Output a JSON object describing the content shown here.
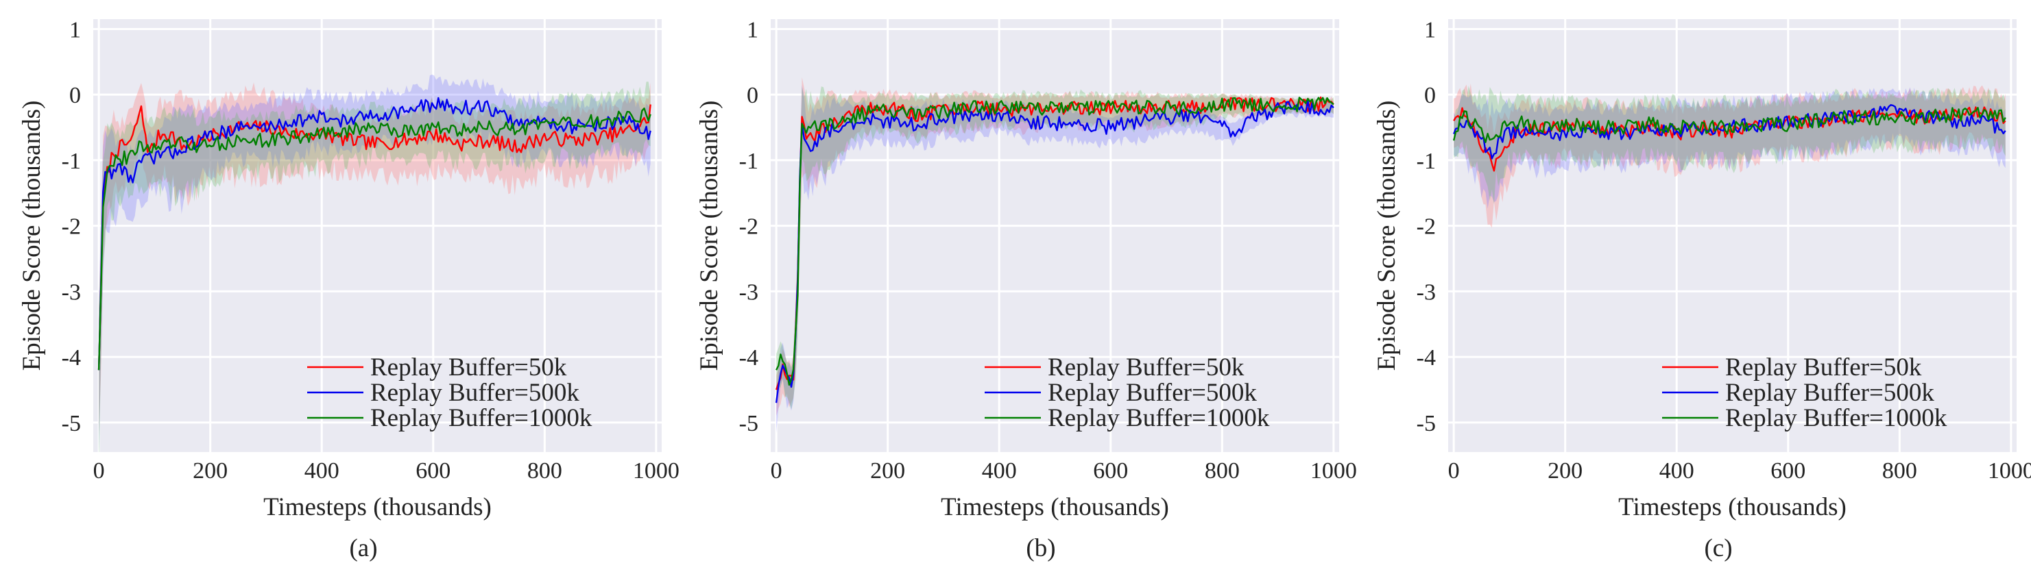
{
  "chart_data": [
    {
      "type": "line",
      "panel_label": "(a)",
      "xlabel": "Timesteps (thousands)",
      "ylabel": "Episode Score (thousands)",
      "xlim": [
        -10,
        1010
      ],
      "ylim": [
        -5.45,
        1.15
      ],
      "xticks": [
        0,
        200,
        400,
        600,
        800,
        1000
      ],
      "yticks": [
        1,
        0,
        -1,
        -2,
        -3,
        -4,
        -5
      ],
      "grid": true,
      "legend_position": "lower-right",
      "series": [
        {
          "name": "Replay Buffer=50k",
          "color": "#ff0000",
          "shade_color": "#ff6b6b",
          "x": [
            0,
            8,
            15,
            25,
            40,
            60,
            75,
            90,
            110,
            130,
            150,
            180,
            210,
            250,
            300,
            350,
            400,
            450,
            500,
            550,
            600,
            650,
            700,
            750,
            800,
            850,
            900,
            950,
            985,
            990
          ],
          "y": [
            -4.2,
            -1.5,
            -1.2,
            -0.9,
            -0.8,
            -0.7,
            -0.2,
            -0.9,
            -0.6,
            -0.6,
            -0.8,
            -0.7,
            -0.6,
            -0.5,
            -0.5,
            -0.6,
            -0.6,
            -0.7,
            -0.75,
            -0.7,
            -0.6,
            -0.75,
            -0.7,
            -0.8,
            -0.65,
            -0.7,
            -0.65,
            -0.55,
            -0.4,
            -0.15
          ],
          "band": [
            -2.2,
            -1.8,
            -1.4,
            -1.2,
            -0.9,
            -0.9,
            -1.0,
            -0.8,
            -1.0,
            -1.2,
            -1.5,
            -1.1,
            -1.0,
            -1.2,
            -1.2,
            -1.0,
            -0.9,
            -0.8,
            -0.8,
            -0.9,
            -1.0,
            -0.9,
            -0.9,
            -1.0,
            -0.9,
            -1.0,
            -1.0,
            -0.9,
            -0.8,
            -0.6
          ]
        },
        {
          "name": "Replay Buffer=500k",
          "color": "#0000ee",
          "shade_color": "#6b6bff",
          "x": [
            0,
            8,
            15,
            25,
            40,
            60,
            75,
            90,
            110,
            130,
            150,
            180,
            210,
            250,
            300,
            350,
            400,
            450,
            500,
            550,
            600,
            650,
            700,
            750,
            800,
            850,
            900,
            950,
            985,
            990
          ],
          "y": [
            -4.2,
            -1.4,
            -1.1,
            -1.2,
            -1.1,
            -1.3,
            -1.0,
            -1.0,
            -0.9,
            -0.9,
            -0.8,
            -0.7,
            -0.6,
            -0.5,
            -0.5,
            -0.4,
            -0.35,
            -0.4,
            -0.3,
            -0.25,
            -0.15,
            -0.2,
            -0.2,
            -0.45,
            -0.4,
            -0.5,
            -0.45,
            -0.4,
            -0.6,
            -0.55
          ],
          "band": [
            -2.2,
            -1.8,
            -1.4,
            -1.2,
            -0.9,
            -0.9,
            -1.0,
            -0.8,
            -1.0,
            -1.2,
            -1.3,
            -1.0,
            -0.9,
            -0.8,
            -0.8,
            -0.9,
            -0.8,
            -0.8,
            -0.7,
            -0.7,
            -0.8,
            -0.8,
            -0.8,
            -0.9,
            -0.8,
            -0.9,
            -0.8,
            -0.8,
            -0.9,
            -0.8
          ]
        },
        {
          "name": "Replay Buffer=1000k",
          "color": "#008000",
          "shade_color": "#5cb85c",
          "x": [
            0,
            8,
            15,
            25,
            40,
            60,
            75,
            90,
            110,
            130,
            150,
            180,
            210,
            250,
            300,
            350,
            400,
            450,
            500,
            550,
            600,
            650,
            700,
            750,
            800,
            850,
            900,
            950,
            985,
            990
          ],
          "y": [
            -4.2,
            -1.6,
            -1.1,
            -1.0,
            -1.0,
            -0.9,
            -0.8,
            -0.8,
            -0.8,
            -0.75,
            -0.75,
            -0.8,
            -0.75,
            -0.7,
            -0.7,
            -0.65,
            -0.6,
            -0.55,
            -0.5,
            -0.55,
            -0.5,
            -0.55,
            -0.5,
            -0.55,
            -0.45,
            -0.45,
            -0.4,
            -0.35,
            -0.3,
            -0.3
          ],
          "band": [
            -2.2,
            -1.8,
            -1.4,
            -1.2,
            -0.9,
            -0.9,
            -1.0,
            -0.8,
            -1.0,
            -1.2,
            -1.3,
            -1.0,
            -0.9,
            -0.8,
            -0.8,
            -0.9,
            -0.8,
            -0.8,
            -0.7,
            -0.7,
            -0.8,
            -0.8,
            -0.8,
            -0.9,
            -0.8,
            -0.9,
            -0.8,
            -0.8,
            -0.9,
            -0.8
          ]
        }
      ]
    },
    {
      "type": "line",
      "panel_label": "(b)",
      "xlabel": "Timesteps (thousands)",
      "ylabel": "Episode Score (thousands)",
      "xlim": [
        -10,
        1010
      ],
      "ylim": [
        -5.45,
        1.15
      ],
      "xticks": [
        0,
        200,
        400,
        600,
        800,
        1000
      ],
      "yticks": [
        1,
        0,
        -1,
        -2,
        -3,
        -4,
        -5
      ],
      "grid": true,
      "legend_position": "lower-right",
      "series": [
        {
          "name": "Replay Buffer=50k",
          "color": "#ff0000",
          "shade_color": "#ff6b6b",
          "x": [
            0,
            10,
            20,
            30,
            38,
            45,
            55,
            70,
            90,
            110,
            150,
            200,
            250,
            300,
            350,
            400,
            450,
            500,
            550,
            600,
            650,
            700,
            750,
            800,
            850,
            900,
            950,
            1000
          ],
          "y": [
            -4.5,
            -4.2,
            -4.3,
            -4.4,
            -3.0,
            -0.4,
            -0.7,
            -0.6,
            -0.5,
            -0.4,
            -0.25,
            -0.2,
            -0.3,
            -0.25,
            -0.2,
            -0.2,
            -0.25,
            -0.2,
            -0.2,
            -0.2,
            -0.2,
            -0.2,
            -0.2,
            -0.15,
            -0.15,
            -0.15,
            -0.15,
            -0.15
          ],
          "band": [
            -0.6,
            -0.6,
            -0.6,
            -0.6,
            -1.0,
            -1.3,
            -1.2,
            -1.1,
            -1.0,
            -0.8,
            -0.6,
            -0.5,
            -0.6,
            -0.5,
            -0.5,
            -0.4,
            -0.5,
            -0.4,
            -0.5,
            -0.4,
            -0.5,
            -0.4,
            -0.4,
            -0.3,
            -0.3,
            -0.2,
            -0.2,
            -0.2
          ]
        },
        {
          "name": "Replay Buffer=500k",
          "color": "#0000ee",
          "shade_color": "#6b6bff",
          "x": [
            0,
            10,
            20,
            30,
            38,
            45,
            55,
            70,
            90,
            110,
            150,
            200,
            250,
            300,
            350,
            400,
            450,
            500,
            550,
            600,
            650,
            700,
            750,
            800,
            820,
            850,
            900,
            950,
            1000
          ],
          "y": [
            -4.7,
            -4.0,
            -4.4,
            -4.4,
            -3.0,
            -0.3,
            -0.9,
            -0.7,
            -0.6,
            -0.5,
            -0.4,
            -0.4,
            -0.45,
            -0.35,
            -0.35,
            -0.3,
            -0.4,
            -0.45,
            -0.45,
            -0.5,
            -0.4,
            -0.35,
            -0.3,
            -0.5,
            -0.55,
            -0.4,
            -0.2,
            -0.2,
            -0.2
          ],
          "band": [
            -0.6,
            -0.6,
            -0.6,
            -0.6,
            -1.0,
            -1.3,
            -1.2,
            -1.1,
            -1.0,
            -0.8,
            -0.6,
            -0.5,
            -0.6,
            -0.5,
            -0.5,
            -0.4,
            -0.5,
            -0.4,
            -0.5,
            -0.4,
            -0.5,
            -0.4,
            -0.4,
            -0.3,
            -0.3,
            -0.2,
            -0.2,
            -0.2,
            -0.2
          ]
        },
        {
          "name": "Replay Buffer=1000k",
          "color": "#008000",
          "shade_color": "#5cb85c",
          "x": [
            0,
            10,
            20,
            30,
            38,
            45,
            55,
            70,
            90,
            110,
            150,
            200,
            250,
            300,
            350,
            400,
            450,
            500,
            550,
            600,
            650,
            700,
            750,
            800,
            850,
            900,
            950,
            1000
          ],
          "y": [
            -4.2,
            -4.0,
            -4.3,
            -4.4,
            -3.2,
            -0.4,
            -0.6,
            -0.5,
            -0.45,
            -0.4,
            -0.3,
            -0.25,
            -0.3,
            -0.25,
            -0.2,
            -0.2,
            -0.2,
            -0.2,
            -0.2,
            -0.2,
            -0.2,
            -0.2,
            -0.2,
            -0.15,
            -0.15,
            -0.15,
            -0.15,
            -0.15
          ],
          "band": [
            -0.6,
            -0.6,
            -0.6,
            -0.6,
            -1.0,
            -1.3,
            -1.2,
            -1.1,
            -1.0,
            -0.8,
            -0.6,
            -0.5,
            -0.6,
            -0.5,
            -0.5,
            -0.4,
            -0.5,
            -0.4,
            -0.5,
            -0.4,
            -0.5,
            -0.4,
            -0.4,
            -0.3,
            -0.3,
            -0.2,
            -0.2,
            -0.2
          ]
        }
      ]
    },
    {
      "type": "line",
      "panel_label": "(c)",
      "xlabel": "Timesteps (thousands)",
      "ylabel": "Episode Score (thousands)",
      "xlim": [
        -10,
        1010
      ],
      "ylim": [
        -5.45,
        1.15
      ],
      "xticks": [
        0,
        200,
        400,
        600,
        800,
        1000
      ],
      "yticks": [
        1,
        0,
        -1,
        -2,
        -3,
        -4,
        -5
      ],
      "grid": true,
      "legend_position": "lower-right",
      "series": [
        {
          "name": "Replay Buffer=50k",
          "color": "#ff0000",
          "shade_color": "#ff6b6b",
          "x": [
            0,
            15,
            30,
            50,
            70,
            90,
            120,
            150,
            200,
            250,
            300,
            350,
            400,
            450,
            500,
            550,
            600,
            650,
            700,
            750,
            800,
            850,
            900,
            950,
            990
          ],
          "y": [
            -0.4,
            -0.3,
            -0.4,
            -0.8,
            -1.1,
            -0.8,
            -0.5,
            -0.55,
            -0.45,
            -0.5,
            -0.55,
            -0.5,
            -0.6,
            -0.5,
            -0.55,
            -0.45,
            -0.4,
            -0.45,
            -0.35,
            -0.3,
            -0.3,
            -0.35,
            -0.3,
            -0.25,
            -0.4
          ],
          "band": [
            -0.6,
            -0.8,
            -1.0,
            -1.3,
            -1.4,
            -1.0,
            -0.8,
            -0.9,
            -0.8,
            -0.8,
            -0.8,
            -0.8,
            -0.9,
            -0.8,
            -0.9,
            -0.8,
            -0.8,
            -0.8,
            -0.8,
            -0.7,
            -0.7,
            -0.8,
            -0.7,
            -0.7,
            -0.8
          ]
        },
        {
          "name": "Replay Buffer=500k",
          "color": "#0000ee",
          "shade_color": "#6b6bff",
          "x": [
            0,
            15,
            30,
            50,
            70,
            90,
            120,
            150,
            200,
            250,
            300,
            350,
            400,
            450,
            500,
            550,
            600,
            650,
            700,
            750,
            800,
            850,
            900,
            950,
            990
          ],
          "y": [
            -0.6,
            -0.4,
            -0.5,
            -0.7,
            -0.9,
            -0.6,
            -0.55,
            -0.6,
            -0.6,
            -0.55,
            -0.6,
            -0.5,
            -0.55,
            -0.5,
            -0.5,
            -0.45,
            -0.4,
            -0.4,
            -0.35,
            -0.3,
            -0.25,
            -0.35,
            -0.4,
            -0.4,
            -0.55
          ],
          "band": [
            -0.6,
            -0.8,
            -1.0,
            -1.3,
            -1.4,
            -1.0,
            -0.8,
            -0.9,
            -0.8,
            -0.8,
            -0.8,
            -0.8,
            -0.9,
            -0.8,
            -0.9,
            -0.8,
            -0.8,
            -0.8,
            -0.8,
            -0.7,
            -0.7,
            -0.8,
            -0.7,
            -0.7,
            -0.8
          ]
        },
        {
          "name": "Replay Buffer=1000k",
          "color": "#008000",
          "shade_color": "#5cb85c",
          "x": [
            0,
            15,
            30,
            50,
            70,
            90,
            120,
            150,
            200,
            250,
            300,
            350,
            400,
            450,
            500,
            550,
            600,
            650,
            700,
            750,
            800,
            850,
            900,
            950,
            990
          ],
          "y": [
            -0.7,
            -0.3,
            -0.4,
            -0.6,
            -0.7,
            -0.5,
            -0.4,
            -0.5,
            -0.45,
            -0.5,
            -0.5,
            -0.45,
            -0.5,
            -0.5,
            -0.5,
            -0.45,
            -0.45,
            -0.4,
            -0.35,
            -0.35,
            -0.35,
            -0.35,
            -0.3,
            -0.3,
            -0.35
          ],
          "band": [
            -0.6,
            -0.8,
            -1.0,
            -1.3,
            -1.4,
            -1.0,
            -0.8,
            -0.9,
            -0.8,
            -0.8,
            -0.8,
            -0.8,
            -0.9,
            -0.8,
            -0.9,
            -0.8,
            -0.8,
            -0.8,
            -0.8,
            -0.7,
            -0.7,
            -0.8,
            -0.7,
            -0.7,
            -0.8
          ]
        }
      ]
    }
  ]
}
